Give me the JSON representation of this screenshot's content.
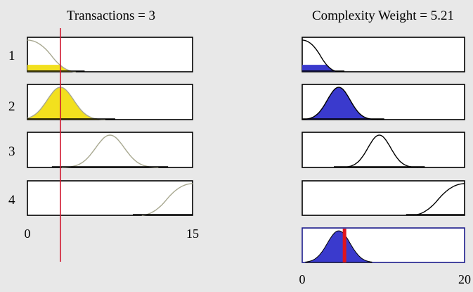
{
  "input_title": "Transactions = 3",
  "output_title": "Complexity Weight = 5.21",
  "rule_numbers": [
    "1",
    "2",
    "3",
    "4"
  ],
  "input_axis": {
    "min_label": "0",
    "max_label": "15",
    "min": 0,
    "max": 15,
    "crisp_value": 3
  },
  "output_axis": {
    "min_label": "0",
    "max_label": "20",
    "min": 0,
    "max": 20,
    "crisp_value": 5.21
  },
  "colors": {
    "input_fill": "#f2e01e",
    "output_fill": "#3a3acd",
    "input_curve": "#a8a890",
    "output_curve": "#000000",
    "indicator_line": "#d01830",
    "output_indicator": "#e0141c"
  },
  "chart_data": [
    {
      "type": "line",
      "name": "input-membership",
      "x_range": [
        0,
        15
      ],
      "rules": [
        {
          "rule": "1",
          "shape": "zmf",
          "start": 0,
          "end": 4.4,
          "activation": 0.22
        },
        {
          "rule": "2",
          "shape": "gauss",
          "center": 3,
          "sigma": 1.2,
          "activation": 1.0
        },
        {
          "rule": "3",
          "shape": "gauss",
          "center": 7.5,
          "sigma": 1.3,
          "activation": 0
        },
        {
          "rule": "4",
          "shape": "smf",
          "start": 10.3,
          "end": 15,
          "activation": 0
        }
      ]
    },
    {
      "type": "area",
      "name": "output-membership",
      "x_range": [
        0,
        20
      ],
      "rules": [
        {
          "rule": "1",
          "shape": "zmf",
          "start": 0,
          "end": 4.5,
          "activation": 0.22
        },
        {
          "rule": "2",
          "shape": "gauss",
          "center": 4.5,
          "sigma": 1.4,
          "activation": 1.0
        },
        {
          "rule": "3",
          "shape": "gauss",
          "center": 9.5,
          "sigma": 1.4,
          "activation": 0
        },
        {
          "rule": "4",
          "shape": "smf",
          "start": 13.5,
          "end": 20,
          "activation": 0
        }
      ],
      "aggregate": {
        "shape": "gauss",
        "center": 4.5,
        "sigma": 1.4,
        "height": 1.0
      }
    }
  ]
}
